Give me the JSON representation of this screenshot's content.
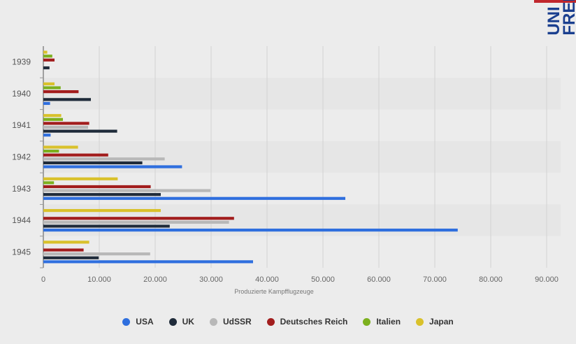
{
  "brand": {
    "logo_text": "UNI FREI"
  },
  "chart_data": {
    "type": "bar",
    "orientation": "horizontal",
    "categories": [
      "1939",
      "1940",
      "1941",
      "1942",
      "1943",
      "1944",
      "1945"
    ],
    "xlabel": "Produzierte Kampfflugzeuge",
    "xlim": [
      0,
      90000
    ],
    "xticks": [
      "0",
      "10.000",
      "20.000",
      "30.000",
      "40.000",
      "50.000",
      "60.000",
      "70.000",
      "80.000",
      "90.000"
    ],
    "grid": true,
    "legend_position": "bottom",
    "series": [
      {
        "name": "USA",
        "color": "#2f6fde",
        "values": [
          0,
          1200,
          1300,
          24800,
          54000,
          74100,
          37500
        ]
      },
      {
        "name": "UK",
        "color": "#1f2b3a",
        "values": [
          1100,
          8500,
          13200,
          17700,
          21000,
          22600,
          9900
        ]
      },
      {
        "name": "UdSSR",
        "color": "#b8b8b8",
        "values": [
          0,
          0,
          8000,
          21700,
          29900,
          33200,
          19100
        ]
      },
      {
        "name": "Deutsches Reich",
        "color": "#a21d1d",
        "values": [
          2000,
          6300,
          8200,
          11600,
          19200,
          34100,
          7200
        ]
      },
      {
        "name": "Italien",
        "color": "#7cb01e",
        "values": [
          1600,
          3100,
          3500,
          2800,
          1900,
          0,
          0
        ]
      },
      {
        "name": "Japan",
        "color": "#d9c12b",
        "values": [
          700,
          2000,
          3200,
          6200,
          13300,
          21000,
          8200
        ]
      }
    ]
  }
}
